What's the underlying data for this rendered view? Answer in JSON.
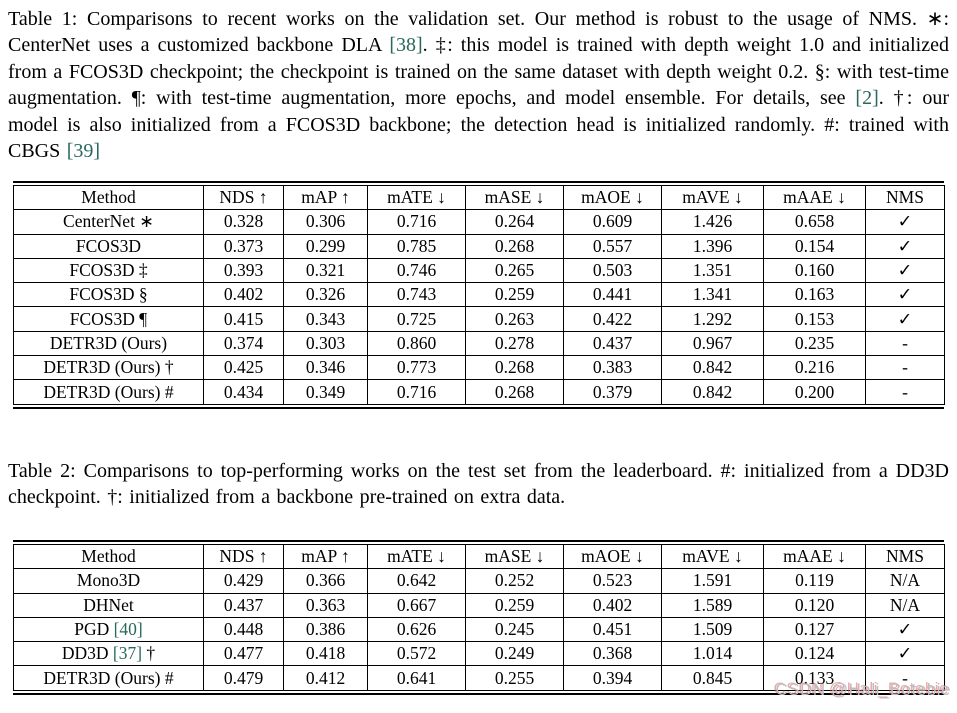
{
  "page": {
    "background": "#ffffff",
    "text_color": "#000000",
    "cite_color": "#27695c",
    "watermark_color": "#bcbcc2"
  },
  "captions": {
    "table1": {
      "segments": [
        {
          "t": "Table 1: Comparisons to recent works on the validation set. Our method is robust to the usage of NMS. ∗: CenterNet uses a customized backbone DLA "
        },
        {
          "t": "[38]",
          "c": "cite"
        },
        {
          "t": ". ‡: this model is trained with depth weight 1.0 and initialized from a FCOS3D checkpoint; the checkpoint is trained on the same dataset with depth weight 0.2. §: with test-time augmentation. ¶: with test-time augmentation, more epochs, and model ensemble. For details, see "
        },
        {
          "t": "[2]",
          "c": "cite"
        },
        {
          "t": ". †: our model is also initialized from a FCOS3D backbone; the detection head is initialized randomly. #: trained with CBGS "
        },
        {
          "t": "[39]",
          "c": "cite"
        }
      ]
    },
    "table2": {
      "segments": [
        {
          "t": "Table 2: Comparisons to top-performing works on the test set from the leaderboard. #: initialized from a DD3D checkpoint. †: initialized from a backbone pre-trained on extra data."
        }
      ]
    }
  },
  "tables": {
    "table1": {
      "headers": [
        "Method",
        "NDS ↑",
        "mAP ↑",
        "mATE ↓",
        "mASE ↓",
        "mAOE ↓",
        "mAVE ↓",
        "mAAE ↓",
        "NMS"
      ],
      "rows": [
        [
          "CenterNet ∗",
          "0.328",
          "0.306",
          "0.716",
          "0.264",
          "0.609",
          "1.426",
          "0.658",
          "✓"
        ],
        [
          "FCOS3D",
          "0.373",
          "0.299",
          "0.785",
          "0.268",
          "0.557",
          "1.396",
          "0.154",
          "✓"
        ],
        [
          "FCOS3D ‡",
          "0.393",
          "0.321",
          "0.746",
          "0.265",
          "0.503",
          "1.351",
          "0.160",
          "✓"
        ],
        [
          "FCOS3D §",
          "0.402",
          "0.326",
          "0.743",
          "0.259",
          "0.441",
          "1.341",
          "0.163",
          "✓"
        ],
        [
          "FCOS3D ¶",
          "0.415",
          "0.343",
          "0.725",
          "0.263",
          "0.422",
          "1.292",
          "0.153",
          "✓"
        ],
        [
          "DETR3D (Ours)",
          "0.374",
          "0.303",
          "0.860",
          "0.278",
          "0.437",
          "0.967",
          "0.235",
          "-"
        ],
        [
          "DETR3D (Ours) †",
          "0.425",
          "0.346",
          "0.773",
          "0.268",
          "0.383",
          "0.842",
          "0.216",
          "-"
        ],
        [
          "DETR3D (Ours) #",
          "0.434",
          "0.349",
          "0.716",
          "0.268",
          "0.379",
          "0.842",
          "0.200",
          "-"
        ]
      ]
    },
    "table2": {
      "headers": [
        "Method",
        "NDS ↑",
        "mAP ↑",
        "mATE ↓",
        "mASE ↓",
        "mAOE ↓",
        "mAVE ↓",
        "mAAE ↓",
        "NMS"
      ],
      "rows": [
        [
          "Mono3D",
          "0.429",
          "0.366",
          "0.642",
          "0.252",
          "0.523",
          "1.591",
          "0.119",
          "N/A"
        ],
        [
          "DHNet",
          "0.437",
          "0.363",
          "0.667",
          "0.259",
          "0.402",
          "1.589",
          "0.120",
          "N/A"
        ],
        [
          {
            "segments": [
              {
                "t": "PGD "
              },
              {
                "t": "[40]",
                "c": "cite"
              }
            ]
          },
          "0.448",
          "0.386",
          "0.626",
          "0.245",
          "0.451",
          "1.509",
          "0.127",
          "✓"
        ],
        [
          {
            "segments": [
              {
                "t": "DD3D "
              },
              {
                "t": "[37]",
                "c": "cite"
              },
              {
                "t": " †"
              }
            ]
          },
          "0.477",
          "0.418",
          "0.572",
          "0.249",
          "0.368",
          "1.014",
          "0.124",
          "✓"
        ],
        [
          "DETR3D (Ours) #",
          "0.479",
          "0.412",
          "0.641",
          "0.255",
          "0.394",
          "0.845",
          "0.133",
          "-"
        ]
      ]
    }
  },
  "watermark": {
    "text": "CSDN @Hali_Botebie"
  }
}
